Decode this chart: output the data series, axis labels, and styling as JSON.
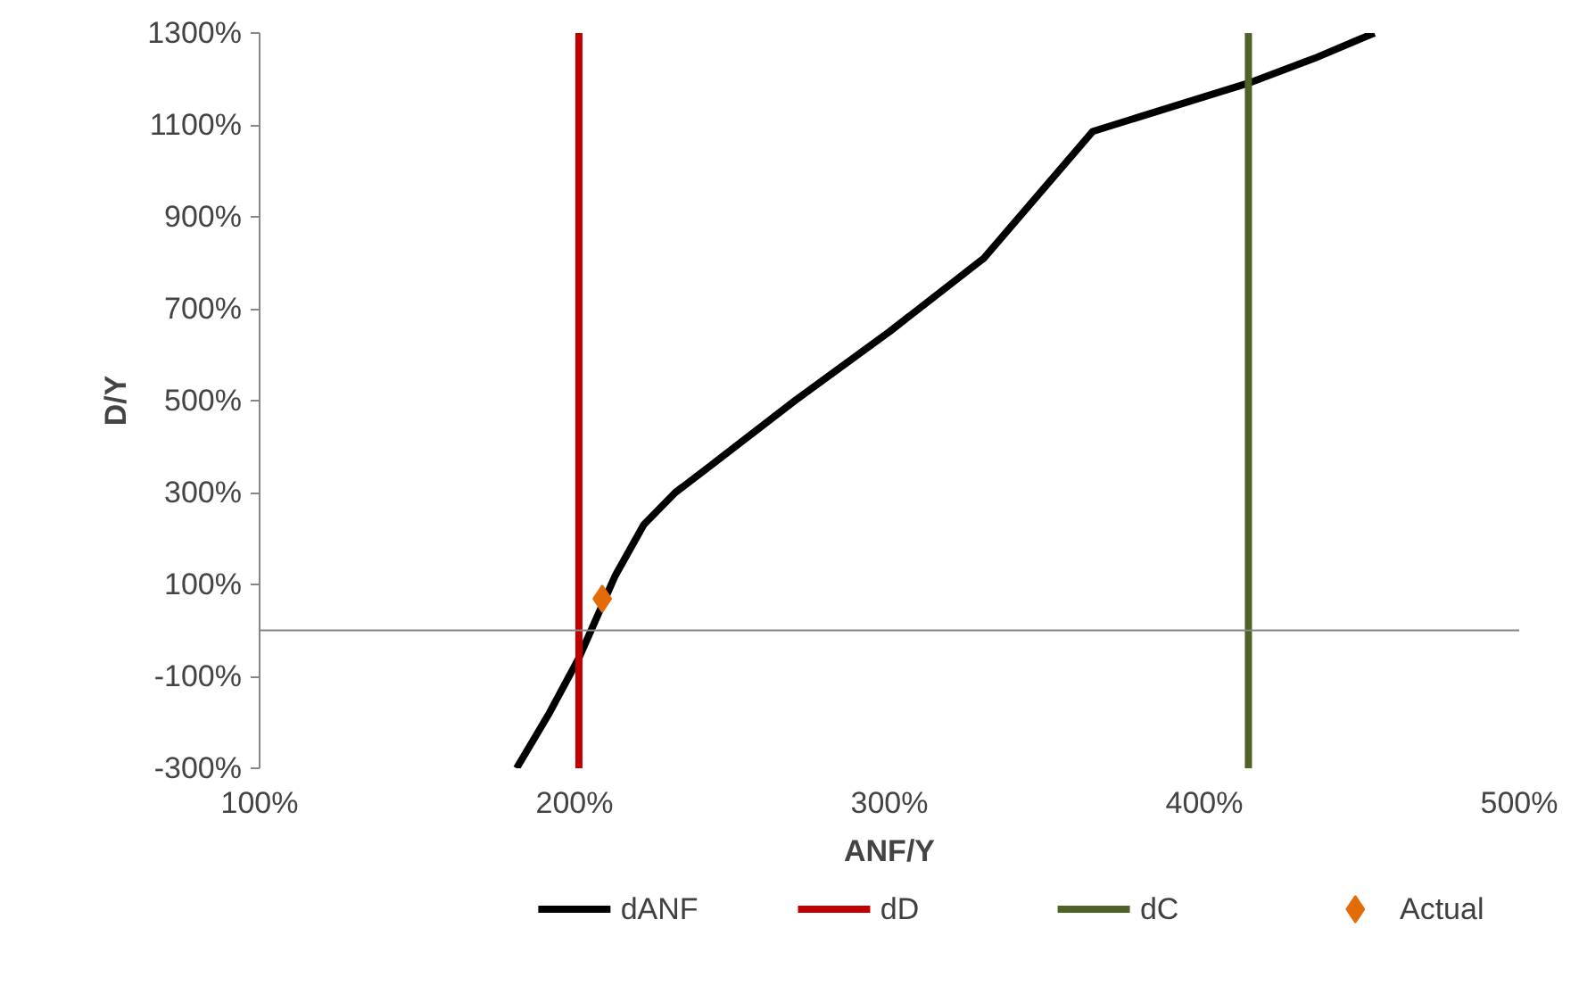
{
  "chart_data": {
    "type": "line",
    "xlabel": "ANF/Y",
    "ylabel": "D/Y",
    "xlim": [
      100,
      500
    ],
    "ylim": [
      -300,
      1300
    ],
    "xticks": [
      {
        "value": 100,
        "label": "100%"
      },
      {
        "value": 200,
        "label": "200%"
      },
      {
        "value": 300,
        "label": "300%"
      },
      {
        "value": 400,
        "label": "400%"
      },
      {
        "value": 500,
        "label": "500%"
      }
    ],
    "yticks": [
      {
        "value": -300,
        "label": "-300%"
      },
      {
        "value": -100,
        "label": "-100%"
      },
      {
        "value": 100,
        "label": "100%"
      },
      {
        "value": 300,
        "label": "300%"
      },
      {
        "value": 500,
        "label": "500%"
      },
      {
        "value": 700,
        "label": "700%"
      },
      {
        "value": 900,
        "label": "900%"
      },
      {
        "value": 1100,
        "label": "1100%"
      },
      {
        "value": 1300,
        "label": "1300%"
      }
    ],
    "grid": false,
    "legend": "bottom",
    "series": [
      {
        "name": "dANF",
        "color": "#000000",
        "x": [
          181.6,
          192,
          201.4,
          213,
          222,
          232,
          243.3,
          270,
          300,
          330,
          364.6,
          390,
          414,
          435,
          454
        ],
        "values": [
          -300,
          -180,
          -60,
          120,
          230,
          300,
          359,
          500,
          650,
          810,
          1086,
          1140,
          1191,
          1245,
          1300
        ]
      },
      {
        "name": "dD",
        "type": "line",
        "color": "#c00000",
        "x": [
          201.4,
          201.4
        ],
        "values": [
          -300,
          1300
        ]
      },
      {
        "name": "dC",
        "type": "line",
        "color": "#4f6228",
        "x": [
          414,
          414
        ],
        "values": [
          -300,
          1300
        ]
      },
      {
        "name": "Actual",
        "type": "scatter",
        "marker": "diamond",
        "color": "#e36c09",
        "x": [
          208.8
        ],
        "values": [
          69
        ]
      }
    ]
  }
}
